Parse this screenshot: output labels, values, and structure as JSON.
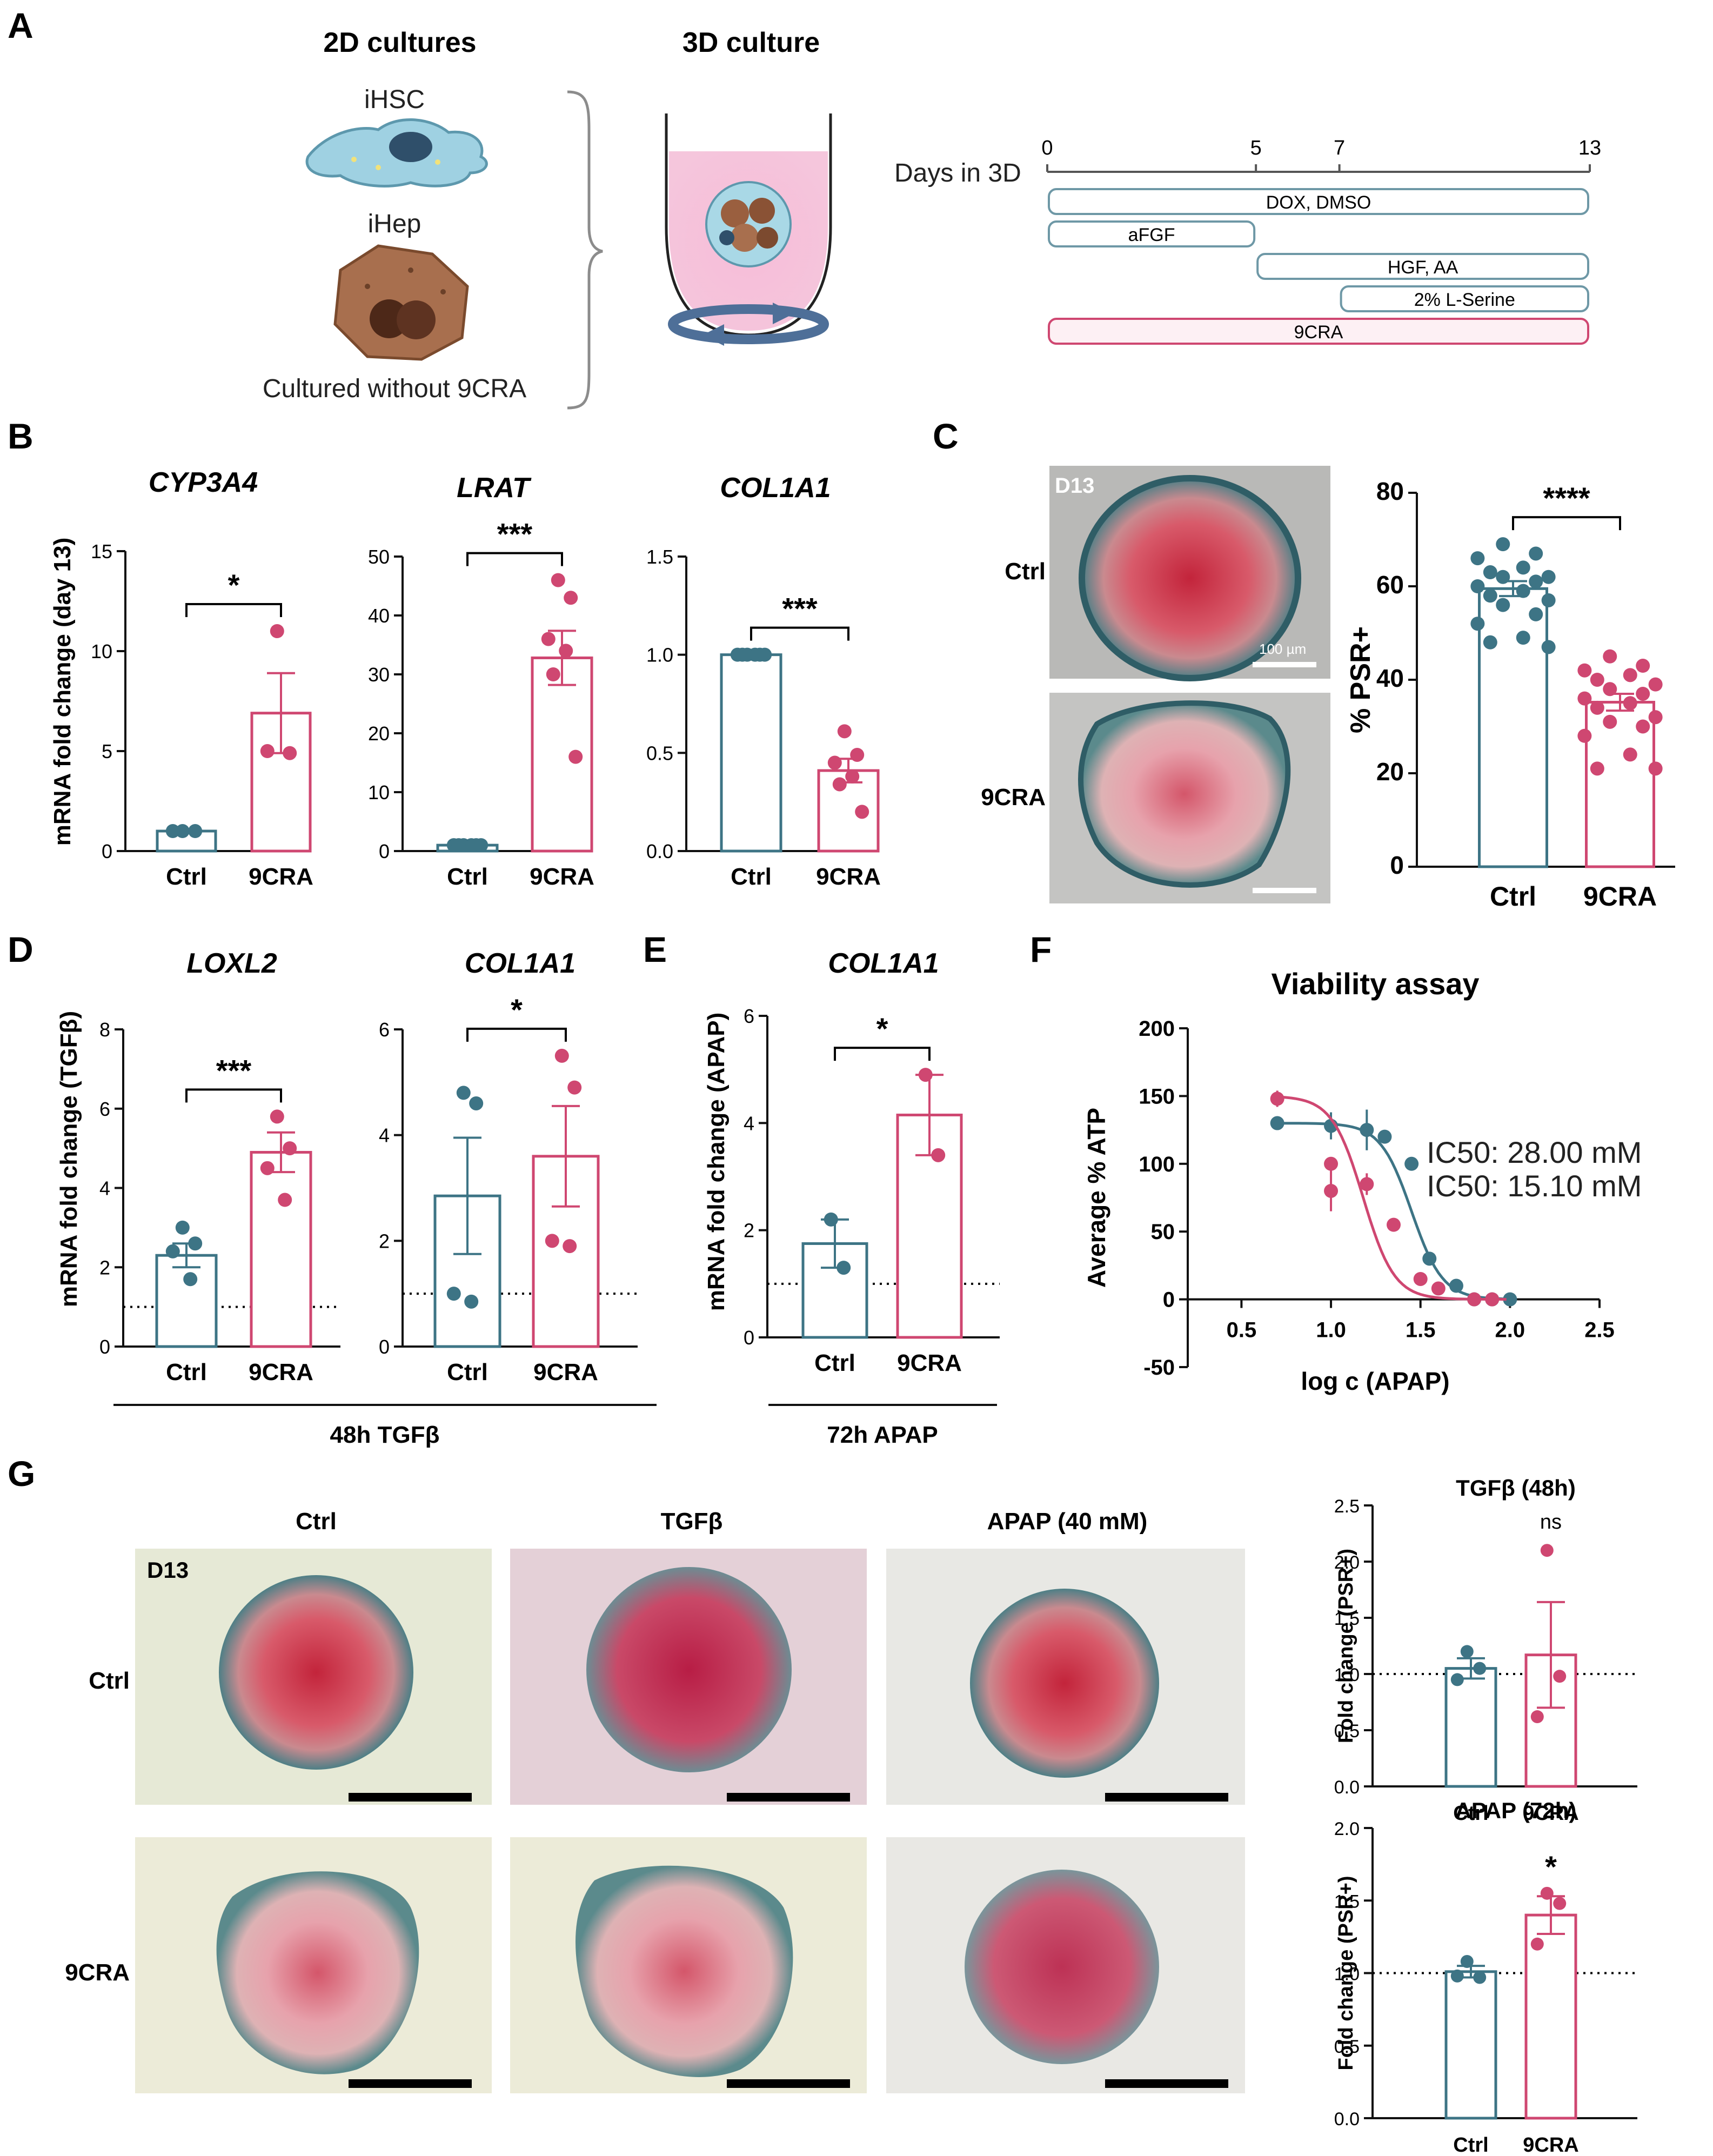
{
  "colors": {
    "ctrl": "#3d7485",
    "cra": "#cf4771",
    "axis": "#111111"
  },
  "panelA": {
    "label": "A",
    "title_2d": "2D cultures",
    "title_3d": "3D culture",
    "cell1": "iHSC",
    "cell2": "iHep",
    "caption": "Cultured without 9CRA",
    "timeline": {
      "axis_label": "Days in 3D",
      "ticks": [
        "0",
        "5",
        "7",
        "13"
      ],
      "bars": [
        {
          "label": "DOX, DMSO",
          "start": 0,
          "end": 13
        },
        {
          "label": "aFGF",
          "start": 0,
          "end": 5
        },
        {
          "label": "HGF, AA",
          "start": 5,
          "end": 13
        },
        {
          "label": "2% L-Serine",
          "start": 7,
          "end": 13
        },
        {
          "label": "9CRA",
          "start": 0,
          "end": 13
        }
      ]
    }
  },
  "panelB": {
    "label": "B",
    "ylabel": "mRNA fold change (day 13)"
  },
  "panelC": {
    "label": "C",
    "img_day": "D13",
    "scale_label": "100 µm",
    "row1": "Ctrl",
    "row2": "9CRA"
  },
  "panelD": {
    "label": "D",
    "ylabel": "mRNA fold change (TGFβ)",
    "bracket": "48h TGFβ"
  },
  "panelE": {
    "label": "E",
    "ylabel": "mRNA fold change (APAP)",
    "bracket": "72h APAP"
  },
  "panelF": {
    "label": "F"
  },
  "panelG": {
    "label": "G",
    "col1": "Ctrl",
    "col2": "TGFβ",
    "col3": "APAP (40 mM)",
    "row1": "Ctrl",
    "row2": "9CRA",
    "img_day": "D13"
  },
  "chart_data": [
    {
      "id": "B1",
      "type": "bar",
      "title": "CYP3A4",
      "categories": [
        "Ctrl",
        "9CRA"
      ],
      "ylabel": "mRNA fold change (day 13)",
      "ylim": [
        0,
        15
      ],
      "yticks": [
        "0",
        "5",
        "10",
        "15"
      ],
      "means": [
        1.0,
        6.9
      ],
      "sem": [
        0.0,
        2.0
      ],
      "points": [
        [
          1.0,
          1.0,
          1.0
        ],
        [
          11.0,
          4.9,
          5.0
        ]
      ],
      "significance": "*"
    },
    {
      "id": "B2",
      "type": "bar",
      "title": "LRAT",
      "categories": [
        "Ctrl",
        "9CRA"
      ],
      "ylim": [
        0,
        50
      ],
      "yticks": [
        "0",
        "10",
        "20",
        "30",
        "40",
        "50"
      ],
      "means": [
        1.0,
        32.8
      ],
      "sem": [
        0.0,
        4.6
      ],
      "points": [
        [
          1,
          1,
          1,
          1,
          1,
          1
        ],
        [
          46,
          43,
          36,
          34,
          30,
          16
        ]
      ],
      "significance": "***"
    },
    {
      "id": "B3",
      "type": "bar",
      "title": "COL1A1",
      "categories": [
        "Ctrl",
        "9CRA"
      ],
      "ylim": [
        0,
        1.5
      ],
      "yticks": [
        "0.0",
        "0.5",
        "1.0",
        "1.5"
      ],
      "means": [
        1.0,
        0.41
      ],
      "sem": [
        0.0,
        0.06
      ],
      "points": [
        [
          1,
          1,
          1,
          1,
          1,
          1
        ],
        [
          0.61,
          0.49,
          0.45,
          0.38,
          0.34,
          0.2
        ]
      ],
      "significance": "***"
    },
    {
      "id": "C",
      "type": "bar",
      "title": "",
      "categories": [
        "Ctrl",
        "9CRA"
      ],
      "ylabel": "% PSR+",
      "ylim": [
        0,
        80
      ],
      "yticks": [
        "0",
        "20",
        "40",
        "60",
        "80"
      ],
      "means": [
        59.5,
        35.2
      ],
      "sem": [
        1.6,
        1.8
      ],
      "points": [
        [
          69,
          67,
          66,
          64,
          63,
          62,
          62,
          61,
          60,
          59,
          58,
          57,
          56,
          54,
          52,
          49,
          48,
          47
        ],
        [
          45,
          43,
          42,
          41,
          40,
          39,
          38,
          37,
          36,
          35,
          34,
          32,
          31,
          30,
          28,
          24,
          21,
          21
        ]
      ],
      "significance": "****"
    },
    {
      "id": "D1",
      "type": "bar",
      "title": "LOXL2",
      "categories": [
        "Ctrl",
        "9CRA"
      ],
      "ylabel": "mRNA fold change (TGFβ)",
      "ylim": [
        0,
        8
      ],
      "yticks": [
        "0",
        "2",
        "4",
        "6",
        "8"
      ],
      "means": [
        2.3,
        4.9
      ],
      "sem": [
        0.3,
        0.5
      ],
      "points": [
        [
          3.0,
          2.6,
          2.4,
          1.7
        ],
        [
          5.8,
          5.0,
          4.5,
          3.7
        ]
      ],
      "significance": "***",
      "reference_line": 1.0
    },
    {
      "id": "D2",
      "type": "bar",
      "title": "COL1A1",
      "categories": [
        "Ctrl",
        "9CRA"
      ],
      "ylim": [
        0,
        6
      ],
      "yticks": [
        "0",
        "2",
        "4",
        "6"
      ],
      "means": [
        2.85,
        3.6
      ],
      "sem": [
        1.1,
        0.95
      ],
      "points": [
        [
          4.8,
          4.6,
          1.0,
          0.85
        ],
        [
          5.5,
          4.9,
          2.0,
          1.9
        ]
      ],
      "significance": "*",
      "reference_line": 1.0
    },
    {
      "id": "E",
      "type": "bar",
      "title": "COL1A1",
      "categories": [
        "Ctrl",
        "9CRA"
      ],
      "ylabel": "mRNA fold change (APAP)",
      "ylim": [
        0,
        6
      ],
      "yticks": [
        "0",
        "2",
        "4",
        "6"
      ],
      "means": [
        1.75,
        4.15
      ],
      "sem": [
        0.45,
        0.75
      ],
      "points": [
        [
          2.2,
          1.3
        ],
        [
          4.9,
          3.4
        ]
      ],
      "significance": "*",
      "reference_line": 1.0
    },
    {
      "id": "F",
      "type": "line",
      "title": "Viability assay",
      "xlabel": "log c (APAP)",
      "ylabel": "Average % ATP",
      "xlim": [
        0.2,
        2.5
      ],
      "ylim": [
        -50,
        200
      ],
      "xticks": [
        "0.5",
        "1.0",
        "1.5",
        "2.0",
        "2.5"
      ],
      "yticks": [
        "-50",
        "0",
        "50",
        "100",
        "150",
        "200"
      ],
      "series": [
        {
          "name": "IC50: 28.00 mM",
          "x": [
            0.7,
            1.0,
            1.2,
            1.3,
            1.45,
            1.55,
            1.7,
            1.8,
            1.9,
            2.0
          ],
          "y": [
            130,
            128,
            125,
            120,
            100,
            30,
            10,
            0,
            0,
            0
          ],
          "err": [
            5,
            10,
            15,
            5,
            5,
            3,
            2,
            1,
            1,
            1
          ],
          "ic50_log": 1.45
        },
        {
          "name": "IC50: 15.10 mM",
          "x": [
            0.7,
            1.0,
            1.0,
            1.2,
            1.35,
            1.5,
            1.6,
            1.8,
            1.9
          ],
          "y": [
            148,
            100,
            80,
            85,
            55,
            15,
            8,
            0,
            0
          ],
          "err": [
            6,
            5,
            15,
            8,
            5,
            3,
            2,
            1,
            1
          ],
          "ic50_log": 1.18
        }
      ]
    },
    {
      "id": "G1",
      "type": "bar",
      "title": "TGFβ (48h)",
      "categories": [
        "Ctrl",
        "9CRA"
      ],
      "ylabel": "Fold change (PSR+)",
      "ylim": [
        0,
        2.5
      ],
      "yticks": [
        "0.0",
        "0.5",
        "1.0",
        "1.5",
        "2.0",
        "2.5"
      ],
      "means": [
        1.05,
        1.17
      ],
      "sem": [
        0.09,
        0.47
      ],
      "points": [
        [
          1.2,
          1.05,
          0.95
        ],
        [
          2.1,
          0.98,
          0.62
        ]
      ],
      "significance": "ns",
      "reference_line": 1.0
    },
    {
      "id": "G2",
      "type": "bar",
      "title": "APAP (72h)",
      "categories": [
        "Ctrl",
        "9CRA"
      ],
      "ylabel": "Fold change (PSR+)",
      "ylim": [
        0,
        2.0
      ],
      "yticks": [
        "0.0",
        "0.5",
        "1.0",
        "1.5",
        "2.0"
      ],
      "means": [
        1.01,
        1.4
      ],
      "sem": [
        0.04,
        0.13
      ],
      "points": [
        [
          1.08,
          0.97,
          0.98
        ],
        [
          1.55,
          1.48,
          1.2
        ]
      ],
      "significance": "*",
      "reference_line": 1.0
    }
  ]
}
